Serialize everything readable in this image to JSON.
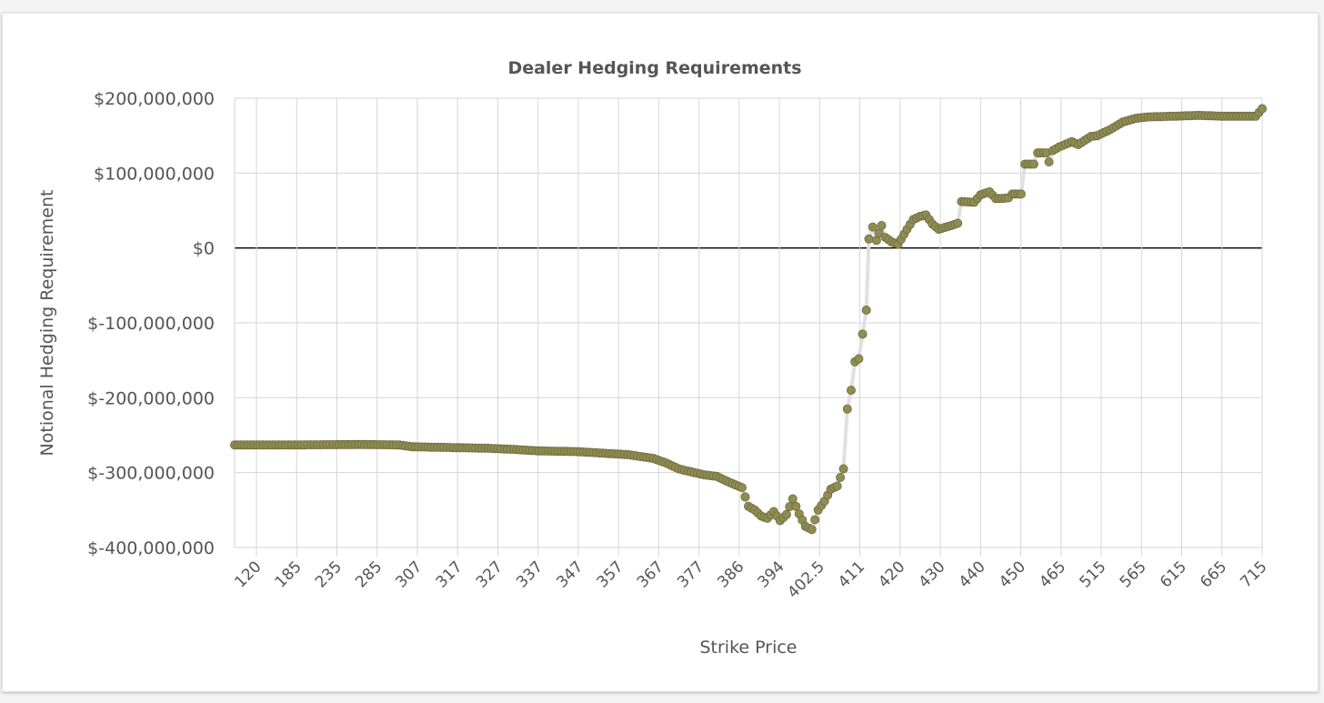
{
  "chart_data": {
    "type": "line",
    "title": "Dealer Hedging Requirements",
    "xlabel": "Strike Price",
    "ylabel": "Notional Hedging Requirement",
    "x_tick_labels": [
      "120",
      "185",
      "235",
      "285",
      "307",
      "317",
      "327",
      "337",
      "347",
      "357",
      "367",
      "377",
      "386",
      "394",
      "402.5",
      "411",
      "420",
      "430",
      "440",
      "450",
      "465",
      "515",
      "565",
      "615",
      "665",
      "715"
    ],
    "y_ticks": [
      {
        "value": 200000000,
        "label": "$200,000,000"
      },
      {
        "value": 100000000,
        "label": "$100,000,000"
      },
      {
        "value": 0,
        "label": "$0"
      },
      {
        "value": -100000000,
        "label": "$-100,000,000"
      },
      {
        "value": -200000000,
        "label": "$-200,000,000"
      },
      {
        "value": -300000000,
        "label": "$-300,000,000"
      },
      {
        "value": -400000000,
        "label": "$-400,000,000"
      }
    ],
    "ylim": [
      -400000000,
      200000000
    ],
    "grid": true,
    "colors": {
      "marker": "#8f8c54",
      "marker_edge": "#6e6b3c",
      "line": "#e0e0e0",
      "grid": "#d6d6d6",
      "zero_line": "#000000"
    },
    "series": [
      {
        "anchors": [
          [
            0,
            -263000000
          ],
          [
            5,
            -263000000
          ],
          [
            10,
            -262500000
          ],
          [
            13,
            -263000000
          ],
          [
            14,
            -265500000
          ],
          [
            17,
            -266500000
          ],
          [
            20,
            -267500000
          ],
          [
            22,
            -269000000
          ],
          [
            24,
            -271000000
          ],
          [
            27,
            -272000000
          ],
          [
            29,
            -274000000
          ],
          [
            31,
            -276000000
          ],
          [
            33,
            -281000000
          ],
          [
            34,
            -287000000
          ],
          [
            35,
            -295000000
          ],
          [
            36,
            -299000000
          ],
          [
            37,
            -303000000
          ],
          [
            38,
            -305000000
          ],
          [
            39,
            -313000000
          ],
          [
            40,
            -320000000
          ],
          [
            40.5,
            -345000000
          ],
          [
            41,
            -350000000
          ],
          [
            41.5,
            -358000000
          ],
          [
            42,
            -361000000
          ],
          [
            42.5,
            -352000000
          ],
          [
            43,
            -364000000
          ],
          [
            43.5,
            -356000000
          ],
          [
            44,
            -335000000
          ],
          [
            44.5,
            -355000000
          ],
          [
            45,
            -372000000
          ],
          [
            45.5,
            -376000000
          ],
          [
            46,
            -350000000
          ],
          [
            46.5,
            -338000000
          ],
          [
            47,
            -322000000
          ],
          [
            47.5,
            -318000000
          ],
          [
            48,
            -295000000
          ],
          [
            48.3,
            -215000000
          ],
          [
            48.6,
            -190000000
          ],
          [
            48.9,
            -152000000
          ],
          [
            49.2,
            -148000000
          ],
          [
            49.5,
            -115000000
          ],
          [
            49.8,
            -83000000
          ],
          [
            50,
            12000000
          ],
          [
            50.3,
            28000000
          ],
          [
            50.6,
            10000000
          ],
          [
            51,
            30000000
          ],
          [
            51.3,
            14000000
          ],
          [
            51.8,
            8000000
          ],
          [
            52.3,
            5000000
          ],
          [
            53,
            25000000
          ],
          [
            53.5,
            38000000
          ],
          [
            54,
            42000000
          ],
          [
            54.5,
            44000000
          ],
          [
            55,
            32000000
          ],
          [
            55.5,
            25000000
          ],
          [
            56.5,
            30000000
          ],
          [
            57,
            33000000
          ],
          [
            57.3,
            62000000
          ],
          [
            58.3,
            61000000
          ],
          [
            58.8,
            71000000
          ],
          [
            59.5,
            75000000
          ],
          [
            60,
            66000000
          ],
          [
            60.5,
            66000000
          ],
          [
            61,
            67000000
          ],
          [
            61.3,
            72000000
          ],
          [
            62,
            72000000
          ],
          [
            62.3,
            112000000
          ],
          [
            63,
            112000000
          ],
          [
            63.3,
            127000000
          ],
          [
            64,
            127000000
          ],
          [
            64.2,
            115000000
          ],
          [
            64.5,
            130000000
          ],
          [
            65,
            135000000
          ],
          [
            66,
            142000000
          ],
          [
            66.5,
            138000000
          ],
          [
            67.5,
            149000000
          ],
          [
            68,
            150000000
          ],
          [
            69,
            158000000
          ],
          [
            70,
            168000000
          ],
          [
            71,
            173000000
          ],
          [
            72,
            175000000
          ],
          [
            74,
            176000000
          ],
          [
            76,
            177000000
          ],
          [
            78,
            176000000
          ],
          [
            80,
            176000000
          ],
          [
            80.5,
            176000000
          ],
          [
            81,
            186000000
          ]
        ]
      }
    ]
  }
}
